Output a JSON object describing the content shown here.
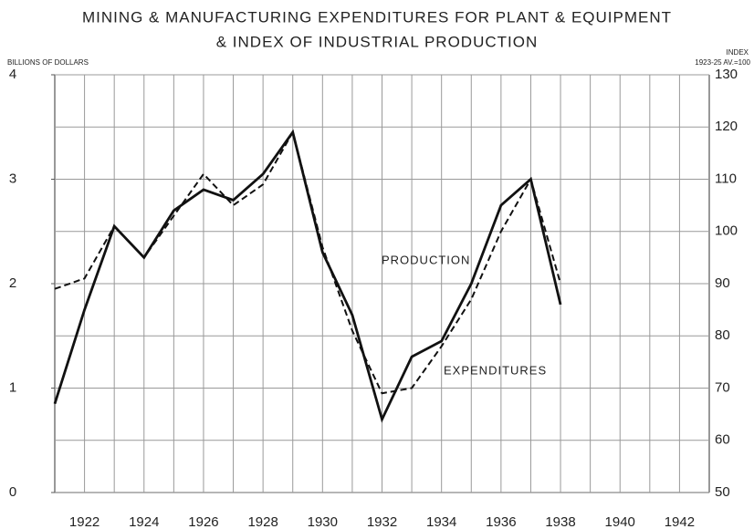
{
  "chart_data": {
    "type": "line",
    "title": "MINING & MANUFACTURING EXPENDITURES FOR PLANT & EQUIPMENT",
    "subtitle": "& INDEX OF INDUSTRIAL PRODUCTION",
    "y_label": "BILLIONS OF DOLLARS",
    "y2_label": "INDEX",
    "y2_sublabel": "1923-25 AV.=100",
    "x": [
      1921,
      1922,
      1923,
      1924,
      1925,
      1926,
      1927,
      1928,
      1929,
      1930,
      1931,
      1932,
      1933,
      1934,
      1935,
      1936,
      1937,
      1938
    ],
    "series": [
      {
        "name": "PRODUCTION",
        "color": "#111111",
        "axis": "y2",
        "dash": false,
        "values": [
          67,
          85,
          101,
          95,
          104,
          108,
          106,
          111,
          119,
          96,
          84,
          64,
          76,
          79,
          90,
          105,
          110,
          86
        ]
      },
      {
        "name": "EXPENDITURES",
        "color": "#111111",
        "axis": "y",
        "dash": true,
        "values": [
          1.95,
          2.05,
          2.55,
          2.25,
          2.65,
          3.05,
          2.75,
          2.95,
          3.45,
          2.35,
          1.55,
          0.95,
          1.0,
          1.4,
          1.85,
          2.5,
          3.0,
          2.0
        ]
      }
    ],
    "xlim": [
      1921,
      1943
    ],
    "xticks": [
      1922,
      1924,
      1926,
      1928,
      1930,
      1932,
      1934,
      1936,
      1938,
      1940,
      1942
    ],
    "ylim": [
      0,
      4
    ],
    "yticks": [
      0,
      1,
      2,
      3,
      4
    ],
    "y2lim": [
      50,
      130
    ],
    "y2ticks": [
      50,
      60,
      70,
      80,
      90,
      100,
      110,
      120,
      130
    ],
    "grid": true
  }
}
